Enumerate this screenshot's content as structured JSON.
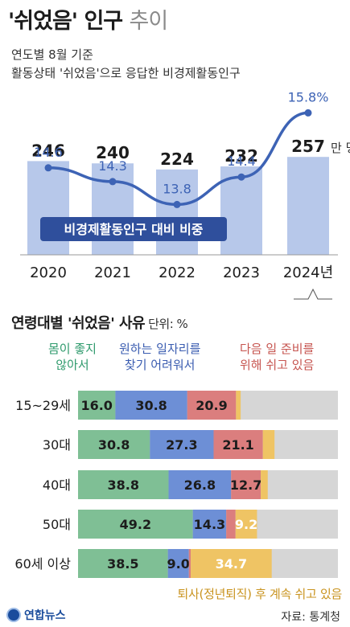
{
  "header": {
    "title_main": "'쉬었음' 인구",
    "title_light": "추이",
    "subtitle1": "연도별 8월 기준",
    "subtitle2": "활동상태 '쉬었음'으로 응답한 비경제활동인구"
  },
  "colors": {
    "bar_top": "#b7c8ea",
    "line": "#3d63b5",
    "label_box": "#2f4f9c",
    "green": "#7fbf95",
    "blue": "#6d8fd6",
    "red": "#db7e7e",
    "yellow": "#efc464",
    "gray": "#d6d6d6"
  },
  "chart_data": [
    {
      "type": "bar",
      "categories": [
        "2020",
        "2021",
        "2022",
        "2023",
        "2024년"
      ],
      "series": [
        {
          "values": [
            246,
            240,
            224,
            232,
            257
          ],
          "value_labels": [
            "246",
            "240",
            "224",
            "232",
            "257"
          ]
        },
        {
          "name": "비경제활동인구 대비 비중",
          "values": [
            14.6,
            14.3,
            13.8,
            14.4,
            15.8
          ],
          "value_labels": [
            "14.6",
            "14.3",
            "13.8",
            "14.4",
            "15.8%"
          ]
        }
      ],
      "unit_label": "만 명",
      "series_label": "비경제활동인구 대비 비중"
    },
    {
      "type": "bar",
      "stacked": true,
      "orientation": "horizontal",
      "title": "연령대별 '쉬었음' 사유",
      "unit_label": "단위: %",
      "categories": [
        "15~29세",
        "30대",
        "40대",
        "50대",
        "60세 이상"
      ],
      "series": [
        {
          "name": "몸이 좋지\n않아서",
          "values": [
            16.0,
            30.8,
            38.8,
            49.2,
            38.5
          ]
        },
        {
          "name": "원하는 일자리를\n찾기 어려워서",
          "values": [
            30.8,
            27.3,
            26.8,
            14.3,
            9.0
          ]
        },
        {
          "name": "다음 일 준비를\n위해 쉬고 있음",
          "values": [
            20.9,
            21.1,
            12.7,
            4.0,
            0.8
          ]
        },
        {
          "name": "퇴사(정년퇴직) 후 계속 쉬고 있음",
          "values": [
            2.0,
            5.0,
            3.0,
            9.2,
            34.7
          ]
        }
      ],
      "value_labels": [
        [
          "16.0",
          "30.8",
          "20.9",
          ""
        ],
        [
          "30.8",
          "27.3",
          "21.1",
          ""
        ],
        [
          "38.8",
          "26.8",
          "12.7",
          ""
        ],
        [
          "49.2",
          "14.3",
          "",
          "9.2"
        ],
        [
          "38.5",
          "9.0",
          "",
          "34.7"
        ]
      ]
    }
  ],
  "source": "자료: 통계청",
  "logo_text": "연합뉴스"
}
